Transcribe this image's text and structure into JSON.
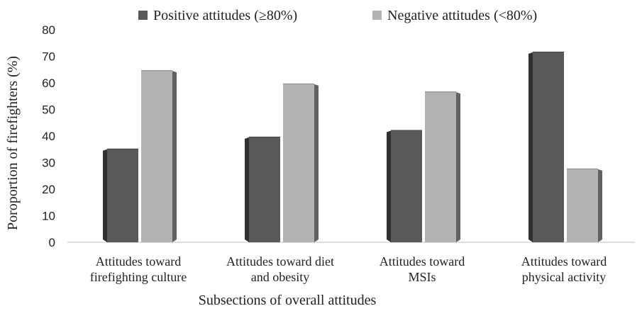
{
  "chart_data": {
    "type": "bar",
    "categories": [
      [
        "Attitudes toward",
        "firefighting culture"
      ],
      [
        "Attitudes toward diet",
        "and obesity"
      ],
      [
        "Attitudes toward",
        "MSIs"
      ],
      [
        "Attitudes toward",
        "physical activity"
      ]
    ],
    "series": [
      {
        "name": "Positive attitudes (≥80%)",
        "values": [
          35,
          39.5,
          42,
          71.5
        ],
        "color": "#595959"
      },
      {
        "name": "Negative attitudes (<80%)",
        "values": [
          64.5,
          59.5,
          56.5,
          27.5
        ],
        "color": "#b3b3b3"
      }
    ],
    "xlabel": "Subsections of overall attitudes",
    "ylabel": "Poroportion of firefighters (%)",
    "ylim": [
      0,
      80
    ],
    "yticks": [
      0,
      10,
      20,
      30,
      40,
      50,
      60,
      70,
      80
    ],
    "legend_position": "top",
    "grid": false,
    "style": "3d-clustered"
  }
}
